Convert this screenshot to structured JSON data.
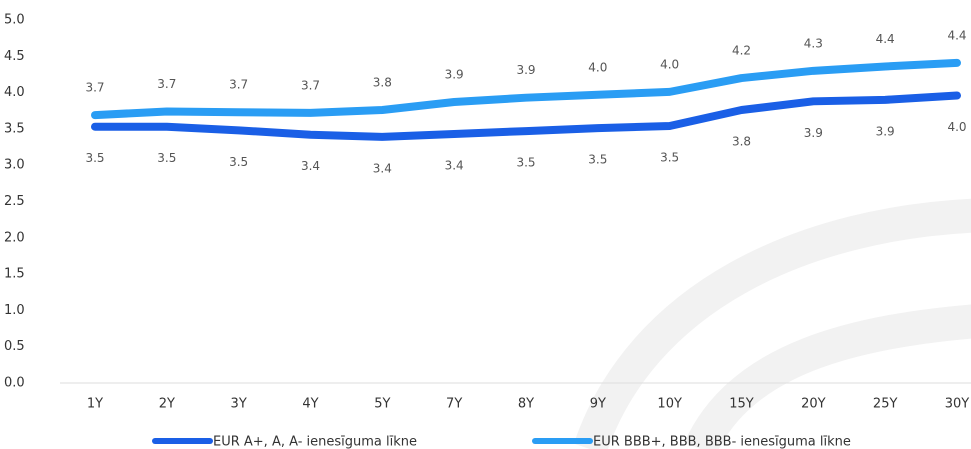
{
  "chart_data": {
    "type": "line",
    "categories": [
      "1Y",
      "2Y",
      "3Y",
      "4Y",
      "5Y",
      "7Y",
      "8Y",
      "9Y",
      "10Y",
      "15Y",
      "20Y",
      "25Y",
      "30Y"
    ],
    "series": [
      {
        "name": "EUR A+, A, A- ienesīguma līkne",
        "color": "#1a5fe6",
        "values": [
          3.53,
          3.53,
          3.48,
          3.42,
          3.39,
          3.43,
          3.47,
          3.51,
          3.54,
          3.76,
          3.88,
          3.9,
          3.96
        ],
        "value_labels": [
          "3.5",
          "3.5",
          "3.5",
          "3.4",
          "3.4",
          "3.4",
          "3.5",
          "3.5",
          "3.5",
          "3.8",
          "3.9",
          "3.9",
          "4.0"
        ]
      },
      {
        "name": "EUR BBB+, BBB, BBB- ienesīguma līkne",
        "color": "#2a9df4",
        "values": [
          3.69,
          3.74,
          3.73,
          3.72,
          3.76,
          3.87,
          3.93,
          3.97,
          4.01,
          4.2,
          4.3,
          4.36,
          4.41
        ],
        "value_labels": [
          "3.7",
          "3.7",
          "3.7",
          "3.7",
          "3.8",
          "3.9",
          "3.9",
          "4.0",
          "4.0",
          "4.2",
          "4.3",
          "4.4",
          "4.4"
        ]
      }
    ],
    "ylim": [
      0,
      5
    ],
    "yticks": [
      {
        "value": 0,
        "label": "0.0"
      },
      0.5,
      {
        "value": 1,
        "label": "1.0"
      },
      1.5,
      {
        "value": 2,
        "label": "2.0"
      },
      2.5,
      {
        "value": 3,
        "label": "3.0"
      },
      3.5,
      {
        "value": 4,
        "label": "4.0"
      },
      4.5,
      {
        "value": 5,
        "label": "5.0"
      }
    ],
    "legend": "bottom"
  }
}
